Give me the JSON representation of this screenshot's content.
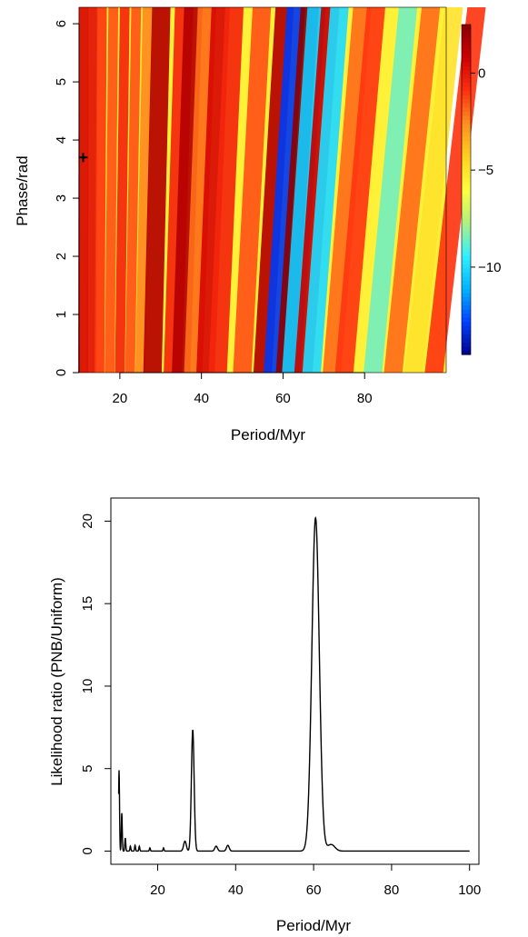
{
  "chart_data": [
    {
      "type": "heatmap",
      "xlabel": "Period/Myr",
      "ylabel": "Phase/rad",
      "xlim": [
        10,
        100
      ],
      "ylim": [
        0,
        6.283
      ],
      "xticks": [
        20,
        40,
        60,
        80
      ],
      "yticks": [
        0,
        1,
        2,
        3,
        4,
        5,
        6
      ],
      "colorbar": {
        "min": -14.5,
        "max": 2.5,
        "ticks": [
          0,
          -5,
          -10
        ]
      },
      "colorscale": [
        "#00008b",
        "#0040ff",
        "#00b4ff",
        "#30f0ff",
        "#b0f080",
        "#ffff40",
        "#ffd020",
        "#ff9020",
        "#ff3010",
        "#d00000",
        "#8b0000"
      ],
      "marker": {
        "x": 11,
        "y": 3.7,
        "symbol": "+"
      },
      "bands": [
        {
          "x": 11,
          "value": 0.5
        },
        {
          "x": 13,
          "value": 0.2
        },
        {
          "x": 15,
          "value": -1
        },
        {
          "x": 17.5,
          "value": -1.5
        },
        {
          "x": 20,
          "value": -0.5
        },
        {
          "x": 22.5,
          "value": -1.5
        },
        {
          "x": 25,
          "value": -2.5
        },
        {
          "x": 28,
          "value": 1.5
        },
        {
          "x": 33,
          "value": -0.5
        },
        {
          "x": 35,
          "value": 1.5
        },
        {
          "x": 38,
          "value": -2
        },
        {
          "x": 41,
          "value": 0.5
        },
        {
          "x": 44,
          "value": -0.5
        },
        {
          "x": 50,
          "value": -1.5
        },
        {
          "x": 55,
          "value": 1.5
        },
        {
          "x": 57.5,
          "value": -13
        },
        {
          "x": 60.5,
          "value": 2.5
        },
        {
          "x": 62,
          "value": -10.5
        },
        {
          "x": 65,
          "value": 1
        },
        {
          "x": 67,
          "value": -10
        },
        {
          "x": 72,
          "value": -2
        },
        {
          "x": 75,
          "value": -1
        },
        {
          "x": 82,
          "value": -8.5
        },
        {
          "x": 87,
          "value": -2
        },
        {
          "x": 92,
          "value": -5
        },
        {
          "x": 97,
          "value": -1
        }
      ]
    },
    {
      "type": "line",
      "xlabel": "Period/Myr",
      "ylabel": "Likelihood ratio (PNB/Uniform)",
      "xlim": [
        10,
        100
      ],
      "ylim": [
        0,
        20.5
      ],
      "xticks": [
        20,
        40,
        60,
        80,
        100
      ],
      "yticks": [
        0,
        5,
        10,
        15,
        20
      ],
      "peaks": [
        {
          "x": 10.1,
          "y": 4.9
        },
        {
          "x": 10.8,
          "y": 2.3
        },
        {
          "x": 11.7,
          "y": 0.8
        },
        {
          "x": 13,
          "y": 0.3
        },
        {
          "x": 14.2,
          "y": 0.35
        },
        {
          "x": 15.3,
          "y": 0.3
        },
        {
          "x": 18,
          "y": 0.2
        },
        {
          "x": 21.5,
          "y": 0.2
        },
        {
          "x": 27,
          "y": 0.6
        },
        {
          "x": 29,
          "y": 7.35
        },
        {
          "x": 35,
          "y": 0.3
        },
        {
          "x": 38,
          "y": 0.35
        },
        {
          "x": 60.5,
          "y": 20.2
        },
        {
          "x": 64.5,
          "y": 0.4
        }
      ]
    }
  ]
}
